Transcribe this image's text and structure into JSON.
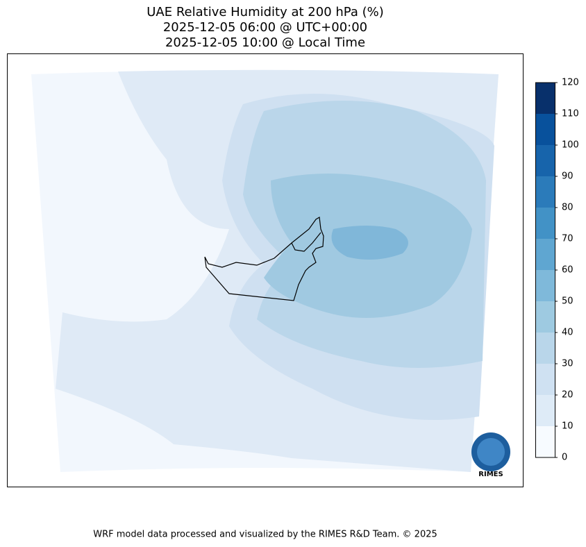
{
  "title": [
    "UAE Relative Humidity at 200 hPa (%)",
    "2025-12-05 06:00 @ UTC+00:00",
    "2025-12-05 10:00 @ Local Time"
  ],
  "colorbar": {
    "range": [
      0,
      120
    ],
    "ticks": [
      0,
      10,
      20,
      30,
      40,
      50,
      60,
      70,
      80,
      90,
      100,
      110,
      120
    ],
    "colors": [
      "#f7fbff",
      "#deebf7",
      "#cfe1f2",
      "#b9d6ea",
      "#9ecae1",
      "#7fb9da",
      "#5fa6d1",
      "#4292c6",
      "#2b7bba",
      "#1764ab",
      "#08519c",
      "#08306b"
    ]
  },
  "logo": "RIMES",
  "footer": "WRF model data processed and visualized by the RIMES R&D Team. © 2025"
}
